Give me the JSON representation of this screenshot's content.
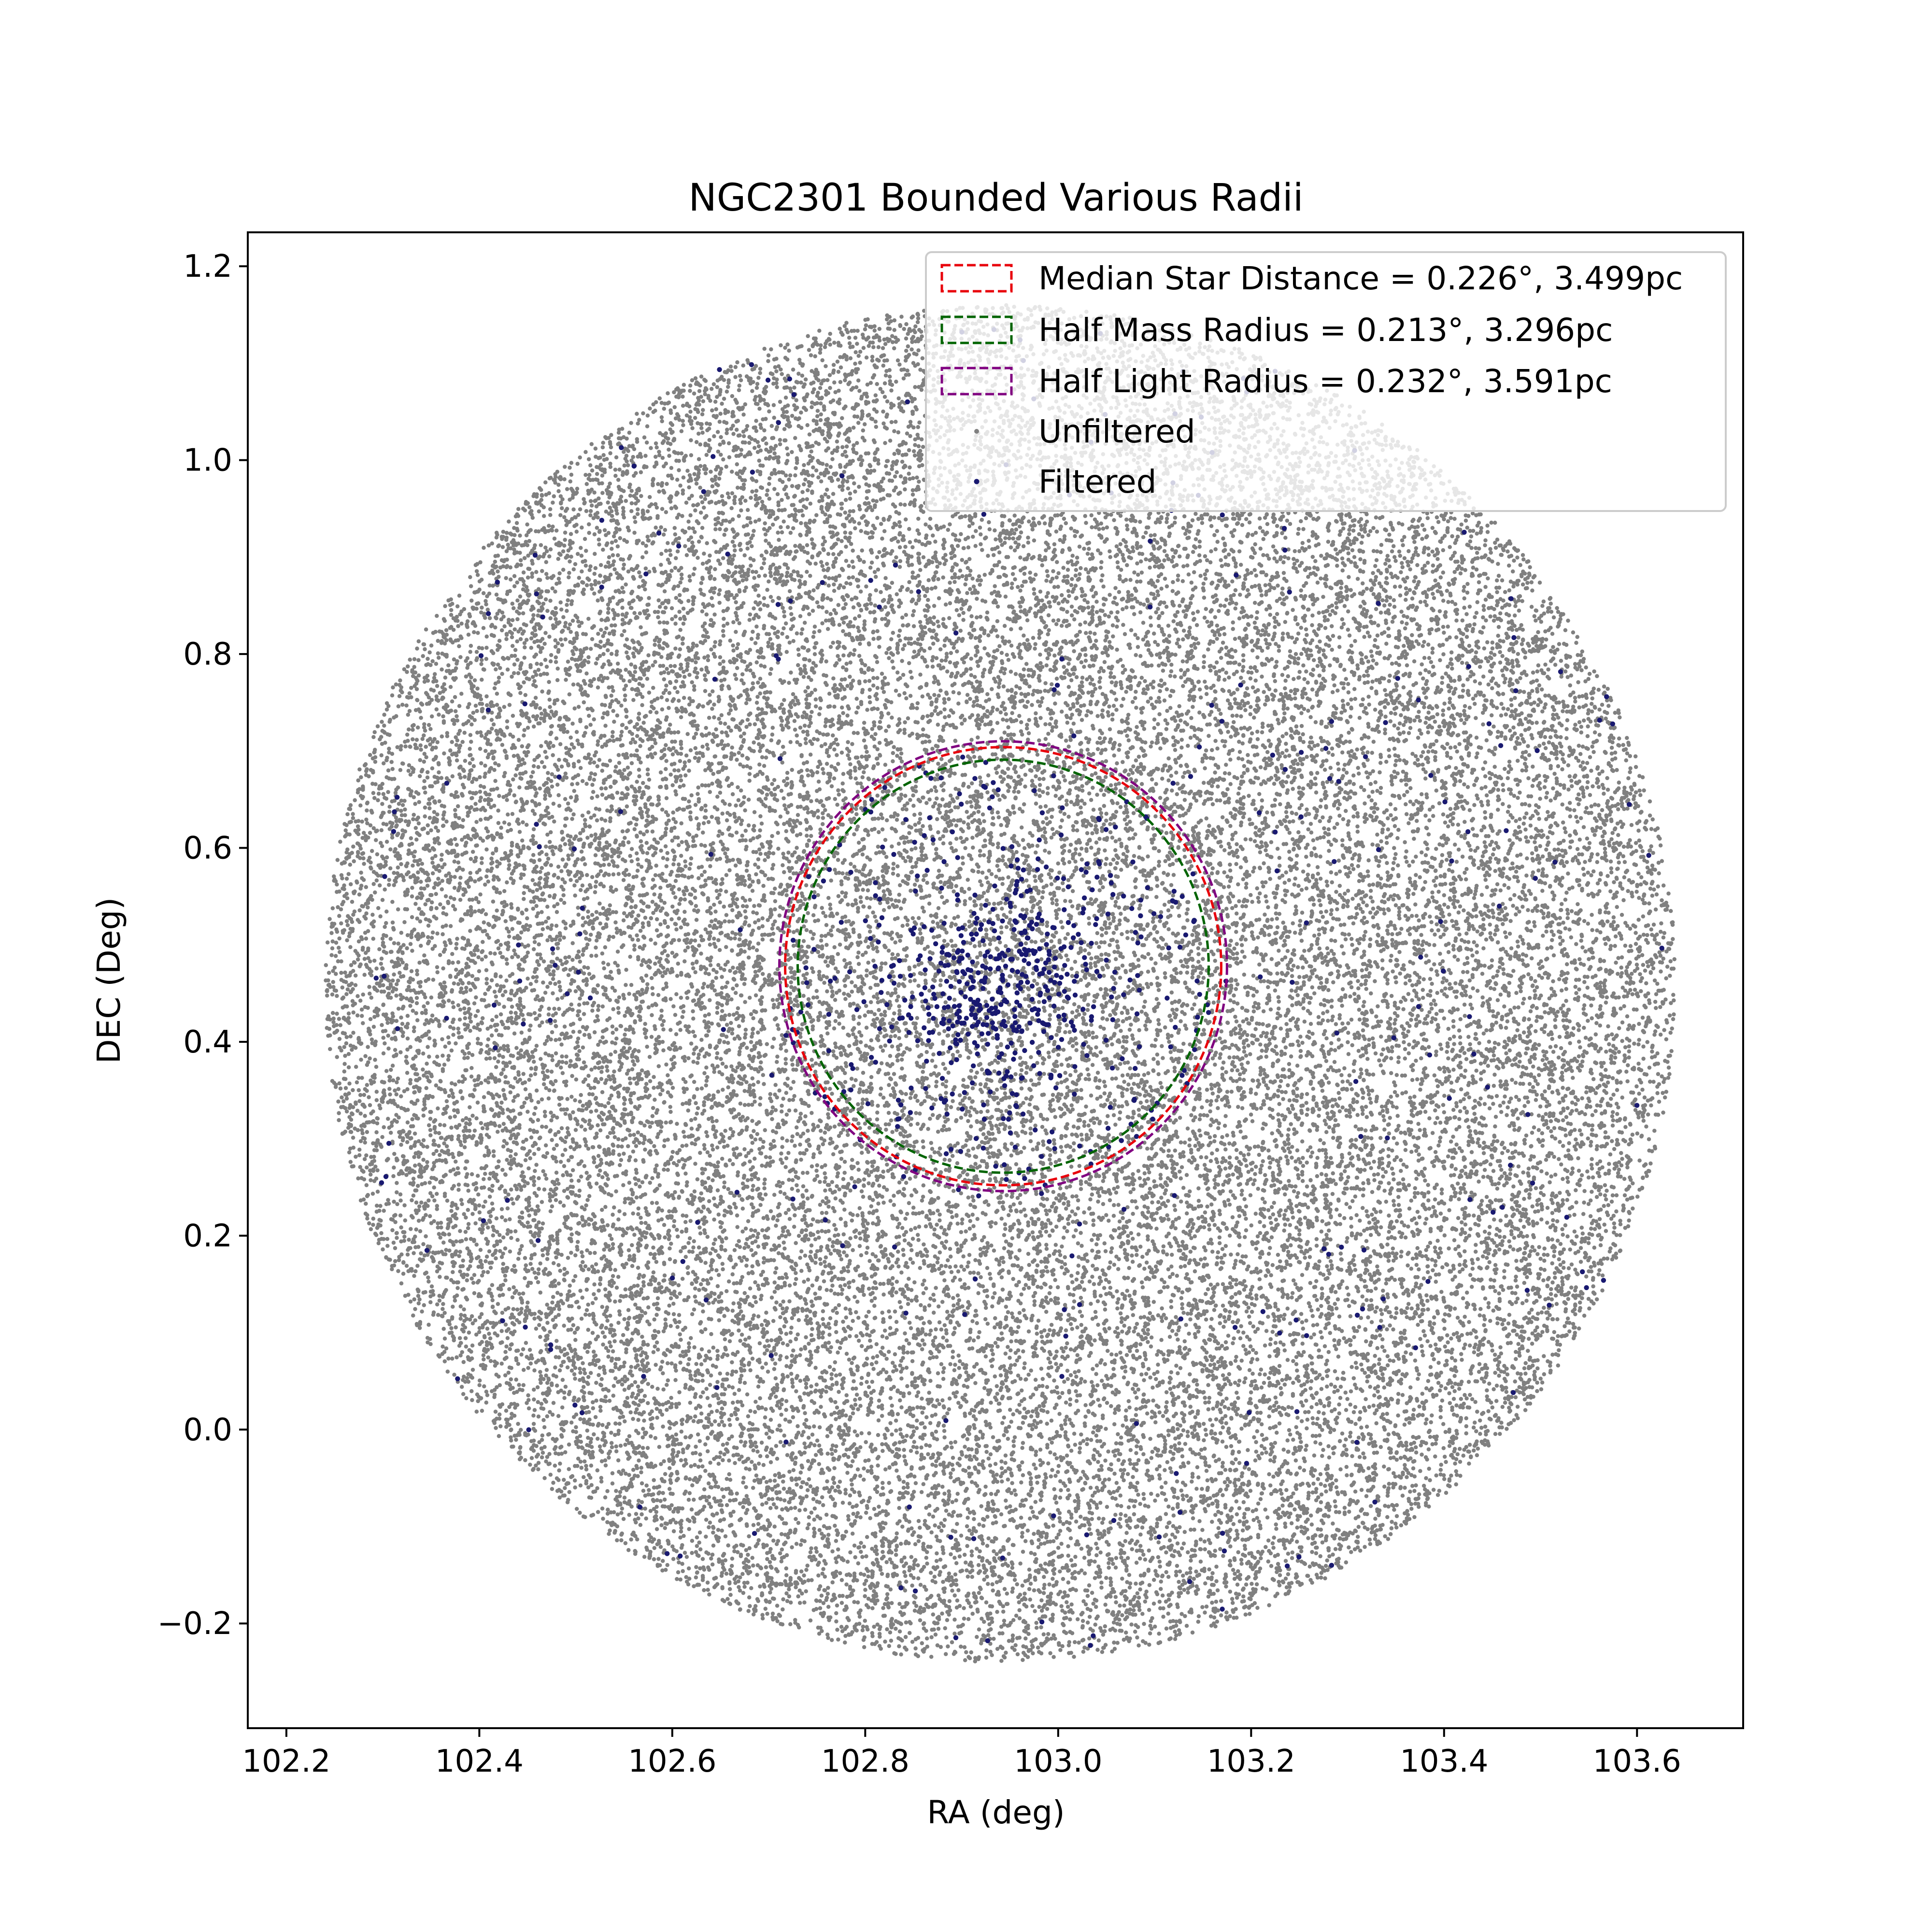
{
  "chart_data": {
    "type": "scatter",
    "title": "NGC2301 Bounded Various Radii",
    "xlabel": "RA (deg)",
    "ylabel": "DEC (Deg)",
    "xlim": [
      102.16,
      103.71
    ],
    "ylim": [
      -0.308,
      1.235
    ],
    "xticks": [
      102.2,
      102.4,
      102.6,
      102.8,
      103.0,
      103.2,
      103.4,
      103.6
    ],
    "xtick_labels": [
      "102.2",
      "102.4",
      "102.6",
      "102.8",
      "103.0",
      "103.2",
      "103.4",
      "103.6"
    ],
    "yticks": [
      -0.2,
      0.0,
      0.2,
      0.4,
      0.6,
      0.8,
      1.0,
      1.2
    ],
    "ytick_labels": [
      "−0.2",
      "0.0",
      "0.2",
      "0.4",
      "0.6",
      "0.8",
      "1.0",
      "1.2"
    ],
    "grid": false,
    "legend_position": "top-right",
    "field": {
      "center_ra": 102.94,
      "center_dec": 0.46,
      "radius_deg": 0.7,
      "approx_count": 40000
    },
    "circles": [
      {
        "name": "Median Star Distance = 0.226°, 3.499pc",
        "center_ra": 102.943,
        "center_dec": 0.478,
        "radius_deg": 0.226,
        "color": "#e8000b"
      },
      {
        "name": "Half Mass Radius = 0.213°, 3.296pc",
        "center_ra": 102.943,
        "center_dec": 0.478,
        "radius_deg": 0.213,
        "color": "#006400"
      },
      {
        "name": "Half Light Radius = 0.232°, 3.591pc",
        "center_ra": 102.943,
        "center_dec": 0.478,
        "radius_deg": 0.232,
        "color": "#800080"
      }
    ],
    "series": [
      {
        "name": "Unfiltered",
        "color": "#808080",
        "distribution": "uniform-disk",
        "center_ra": 102.94,
        "center_dec": 0.46,
        "radius_deg": 0.7,
        "approx_count": 40000
      },
      {
        "name": "Filtered",
        "color": "#191970",
        "distribution": "concentrated-cluster-plus-field",
        "center_ra": 102.935,
        "center_dec": 0.46,
        "core_sigma_deg": 0.06,
        "approx_count": 900
      }
    ]
  }
}
